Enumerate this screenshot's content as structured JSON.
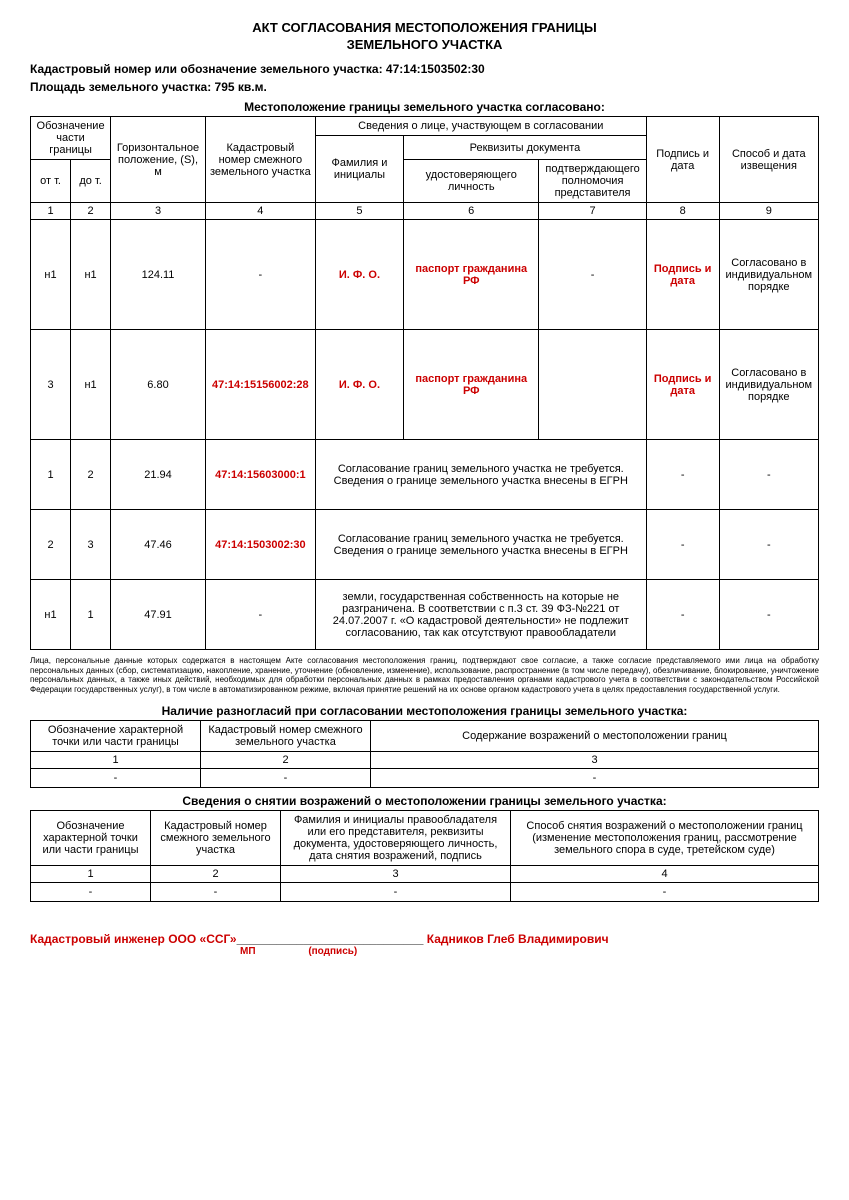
{
  "title1": "АКТ СОГЛАСОВАНИЯ МЕСТОПОЛОЖЕНИЯ ГРАНИЦЫ",
  "title2": "ЗЕМЕЛЬНОГО УЧАСТКА",
  "cadastral_line": "Кадастровый номер или обозначение земельного участка: 47:14:1503502:30",
  "area_line": "Площадь земельного участка: 795 кв.м.",
  "section1_title": "Местоположение границы земельного участка согласовано:",
  "main_table": {
    "h_obozn": "Обозначение части границы",
    "h_ot": "от т.",
    "h_do": "до т.",
    "h_goriz": "Горизонтальное положение, (S), м",
    "h_kad": "Кадастровый номер смежного земельного участка",
    "h_sved": "Сведения о лице, участвующем в согласовании",
    "h_rekv": "Реквизиты документа",
    "h_fio": "Фамилия и инициалы",
    "h_udost": "удостоверяющего личность",
    "h_poln": "подтверждающего полномочия представителя",
    "h_podpis": "Подпись и дата",
    "h_sposob": "Способ и дата извещения",
    "nums": [
      "1",
      "2",
      "3",
      "4",
      "5",
      "6",
      "7",
      "8",
      "9"
    ],
    "rows": [
      {
        "ot": "н1",
        "do": "н1",
        "s": "124.11",
        "kad": "-",
        "fio": "И. Ф. О.",
        "udost": "паспорт гражданина РФ",
        "poln": "-",
        "podpis": "Подпись и дата",
        "sposob": "Согласовано в индивидуальном порядке",
        "tall": true,
        "red_fio": true,
        "red_udost": true,
        "red_kad": false,
        "red_podpis": true,
        "merged": false
      },
      {
        "ot": "3",
        "do": "н1",
        "s": "6.80",
        "kad": "47:14:15156002:28",
        "fio": "И. Ф. О.",
        "udost": "паспорт гражданина РФ",
        "poln": "",
        "podpis": "Подпись и дата",
        "sposob": "Согласовано в индивидуальном порядке",
        "tall": true,
        "red_fio": true,
        "red_udost": true,
        "red_kad": true,
        "red_podpis": true,
        "merged": false
      },
      {
        "ot": "1",
        "do": "2",
        "s": "21.94",
        "kad": "47:14:15603000:1",
        "merged_text": "Согласование границ земельного участка не требуется. Сведения о границе земельного участка внесены в ЕГРН",
        "podpis": "-",
        "sposob": "-",
        "tall": false,
        "red_kad": true,
        "merged": true
      },
      {
        "ot": "2",
        "do": "3",
        "s": "47.46",
        "kad": "47:14:1503002:30",
        "merged_text": "Согласование границ земельного участка не требуется. Сведения о границе земельного участка внесены в ЕГРН",
        "podpis": "-",
        "sposob": "-",
        "tall": false,
        "red_kad": true,
        "merged": true
      },
      {
        "ot": "н1",
        "do": "1",
        "s": "47.91",
        "kad": "-",
        "merged_text": "земли, государственная собственность на которые не разграничена. В соответствии с п.3 ст. 39 ФЗ-№221 от 24.07.2007 г. «О кадастровой деятельности» не подлежит согласованию, так как отсутствуют правообладатели",
        "podpis": "-",
        "sposob": "-",
        "tall": false,
        "red_kad": false,
        "merged": true
      }
    ]
  },
  "fine_print": "Лица, персональные данные которых содержатся в настоящем Акте согласования местоположения границ, подтверждают свое согласие, а также согласие представляемого ими лица на обработку персональных данных (сбор, систематизацию, накопление, хранение, уточнение (обновление, изменение), использование, распространение (в том числе передачу), обезличивание, блокирование, уничтожение персональных данных, а также иных действий, необходимых для обработки персональных данных в рамках предоставления органами кадастрового учета в соответствии с законодательством Российской Федерации государственных услуг), в том числе в автоматизированном режиме, включая принятие решений на их основе органом кадастрового учета в целях предоставления государственной услуги.",
  "section2_title": "Наличие разногласий при согласовании местоположения границы земельного участка:",
  "table2": {
    "h1": "Обозначение характерной точки или части границы",
    "h2": "Кадастровый номер смежного земельного участка",
    "h3": "Содержание возражений о местоположении границ",
    "nums": [
      "1",
      "2",
      "3"
    ],
    "row": [
      "-",
      "-",
      "-"
    ]
  },
  "section3_title": "Сведения о снятии возражений о местоположении границы земельного участка:",
  "table3": {
    "h1": "Обозначение характерной точки или части границы",
    "h2": "Кадастровый номер смежного земельного участка",
    "h3": "Фамилия и инициалы правообладателя или его представителя, реквизиты документа, удостоверяющего личность, дата снятия возражений, подпись",
    "h4": "Способ снятия возражений о местоположении границ (изменение местоположения границ, рассмотрение земельного спора в суде, третейском суде)",
    "nums": [
      "1",
      "2",
      "3",
      "4"
    ],
    "row": [
      "-",
      "-",
      "-",
      "-"
    ]
  },
  "signature": {
    "prefix": "Кадастровый инженер ООО «ССГ»",
    "underline": "____________________________",
    "name": " Кадников Глеб Владимирович",
    "mp": "МП",
    "podpis": "(подпись)"
  }
}
